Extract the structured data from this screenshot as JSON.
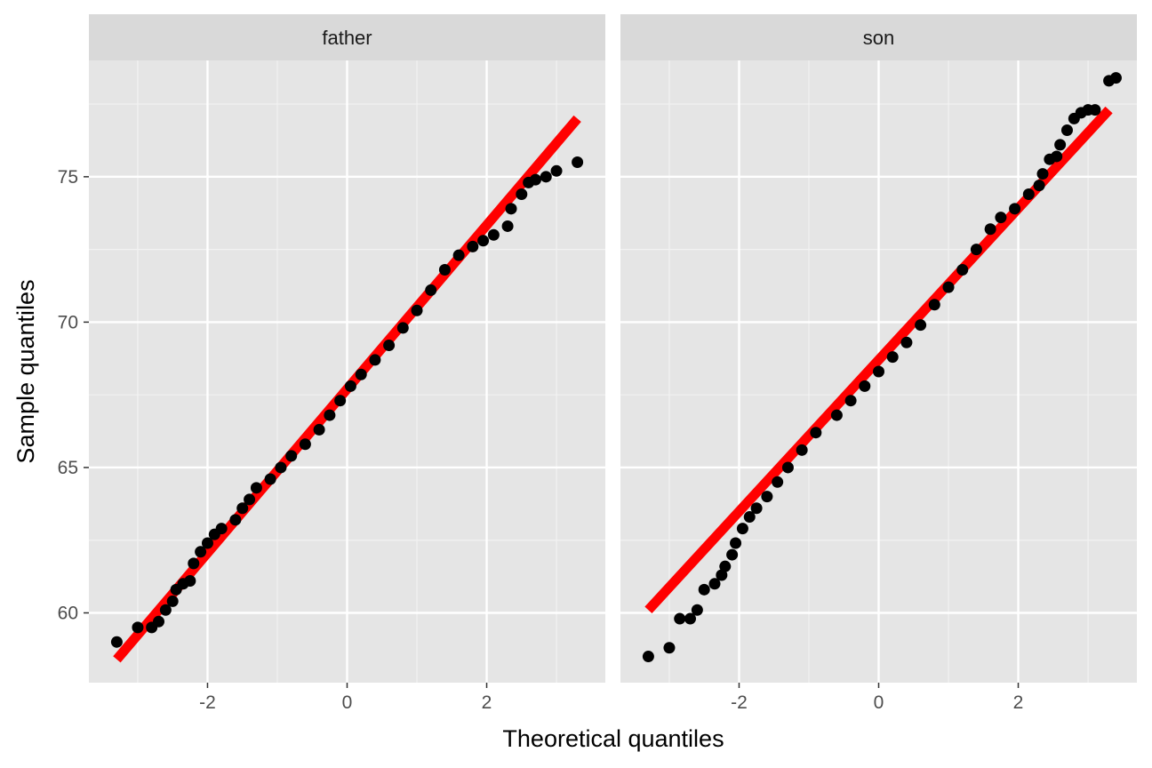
{
  "chart_data": {
    "type": "scatter",
    "subtype": "qq-plot",
    "facet_layout": "two panels side by side",
    "xlabel": "Theoretical quantiles",
    "ylabel": "Sample quantiles",
    "xlim": [
      -3.7,
      3.7
    ],
    "ylim": [
      57.6,
      79.0
    ],
    "x_ticks": [
      -2,
      0,
      2
    ],
    "x_tick_labels": [
      "-2",
      "0",
      "2"
    ],
    "y_ticks": [
      60,
      65,
      70,
      75
    ],
    "y_tick_labels": [
      "60",
      "65",
      "70",
      "75"
    ],
    "grid": true,
    "line_color": "#ff0000",
    "point_color": "#000000",
    "panel_background": "#e5e5e5",
    "strip_background": "#d9d9d9",
    "panels": [
      {
        "name": "father",
        "reference_line": [
          [
            -3.3,
            58.4
          ],
          [
            3.3,
            77.0
          ]
        ],
        "points": [
          [
            -3.3,
            59.0
          ],
          [
            -3.0,
            59.5
          ],
          [
            -2.8,
            59.5
          ],
          [
            -2.7,
            59.7
          ],
          [
            -2.6,
            60.1
          ],
          [
            -2.5,
            60.4
          ],
          [
            -2.45,
            60.8
          ],
          [
            -2.35,
            61.0
          ],
          [
            -2.25,
            61.1
          ],
          [
            -2.2,
            61.7
          ],
          [
            -2.1,
            62.1
          ],
          [
            -2.0,
            62.4
          ],
          [
            -1.9,
            62.7
          ],
          [
            -1.8,
            62.9
          ],
          [
            -1.6,
            63.2
          ],
          [
            -1.5,
            63.6
          ],
          [
            -1.4,
            63.9
          ],
          [
            -1.3,
            64.3
          ],
          [
            -1.1,
            64.6
          ],
          [
            -0.95,
            65.0
          ],
          [
            -0.8,
            65.4
          ],
          [
            -0.6,
            65.8
          ],
          [
            -0.4,
            66.3
          ],
          [
            -0.25,
            66.8
          ],
          [
            -0.1,
            67.3
          ],
          [
            0.05,
            67.8
          ],
          [
            0.2,
            68.2
          ],
          [
            0.4,
            68.7
          ],
          [
            0.6,
            69.2
          ],
          [
            0.8,
            69.8
          ],
          [
            1.0,
            70.4
          ],
          [
            1.2,
            71.1
          ],
          [
            1.4,
            71.8
          ],
          [
            1.6,
            72.3
          ],
          [
            1.8,
            72.6
          ],
          [
            1.95,
            72.8
          ],
          [
            2.1,
            73.0
          ],
          [
            2.3,
            73.3
          ],
          [
            2.35,
            73.9
          ],
          [
            2.5,
            74.4
          ],
          [
            2.6,
            74.8
          ],
          [
            2.7,
            74.9
          ],
          [
            2.85,
            75.0
          ],
          [
            3.0,
            75.2
          ],
          [
            3.3,
            75.5
          ]
        ]
      },
      {
        "name": "son",
        "reference_line": [
          [
            -3.3,
            60.1
          ],
          [
            3.3,
            77.3
          ]
        ],
        "points": [
          [
            -3.3,
            58.5
          ],
          [
            -3.0,
            58.8
          ],
          [
            -2.85,
            59.8
          ],
          [
            -2.7,
            59.8
          ],
          [
            -2.6,
            60.1
          ],
          [
            -2.5,
            60.8
          ],
          [
            -2.35,
            61.0
          ],
          [
            -2.25,
            61.3
          ],
          [
            -2.2,
            61.6
          ],
          [
            -2.1,
            62.0
          ],
          [
            -2.05,
            62.4
          ],
          [
            -1.95,
            62.9
          ],
          [
            -1.85,
            63.3
          ],
          [
            -1.75,
            63.6
          ],
          [
            -1.6,
            64.0
          ],
          [
            -1.45,
            64.5
          ],
          [
            -1.3,
            65.0
          ],
          [
            -1.1,
            65.6
          ],
          [
            -0.9,
            66.2
          ],
          [
            -0.6,
            66.8
          ],
          [
            -0.4,
            67.3
          ],
          [
            -0.2,
            67.8
          ],
          [
            0.0,
            68.3
          ],
          [
            0.2,
            68.8
          ],
          [
            0.4,
            69.3
          ],
          [
            0.6,
            69.9
          ],
          [
            0.8,
            70.6
          ],
          [
            1.0,
            71.2
          ],
          [
            1.2,
            71.8
          ],
          [
            1.4,
            72.5
          ],
          [
            1.6,
            73.2
          ],
          [
            1.75,
            73.6
          ],
          [
            1.95,
            73.9
          ],
          [
            2.15,
            74.4
          ],
          [
            2.3,
            74.7
          ],
          [
            2.35,
            75.1
          ],
          [
            2.45,
            75.6
          ],
          [
            2.55,
            75.7
          ],
          [
            2.6,
            76.1
          ],
          [
            2.7,
            76.6
          ],
          [
            2.8,
            77.0
          ],
          [
            2.9,
            77.2
          ],
          [
            3.0,
            77.3
          ],
          [
            3.1,
            77.3
          ],
          [
            3.3,
            78.3
          ],
          [
            3.4,
            78.4
          ]
        ]
      }
    ]
  }
}
